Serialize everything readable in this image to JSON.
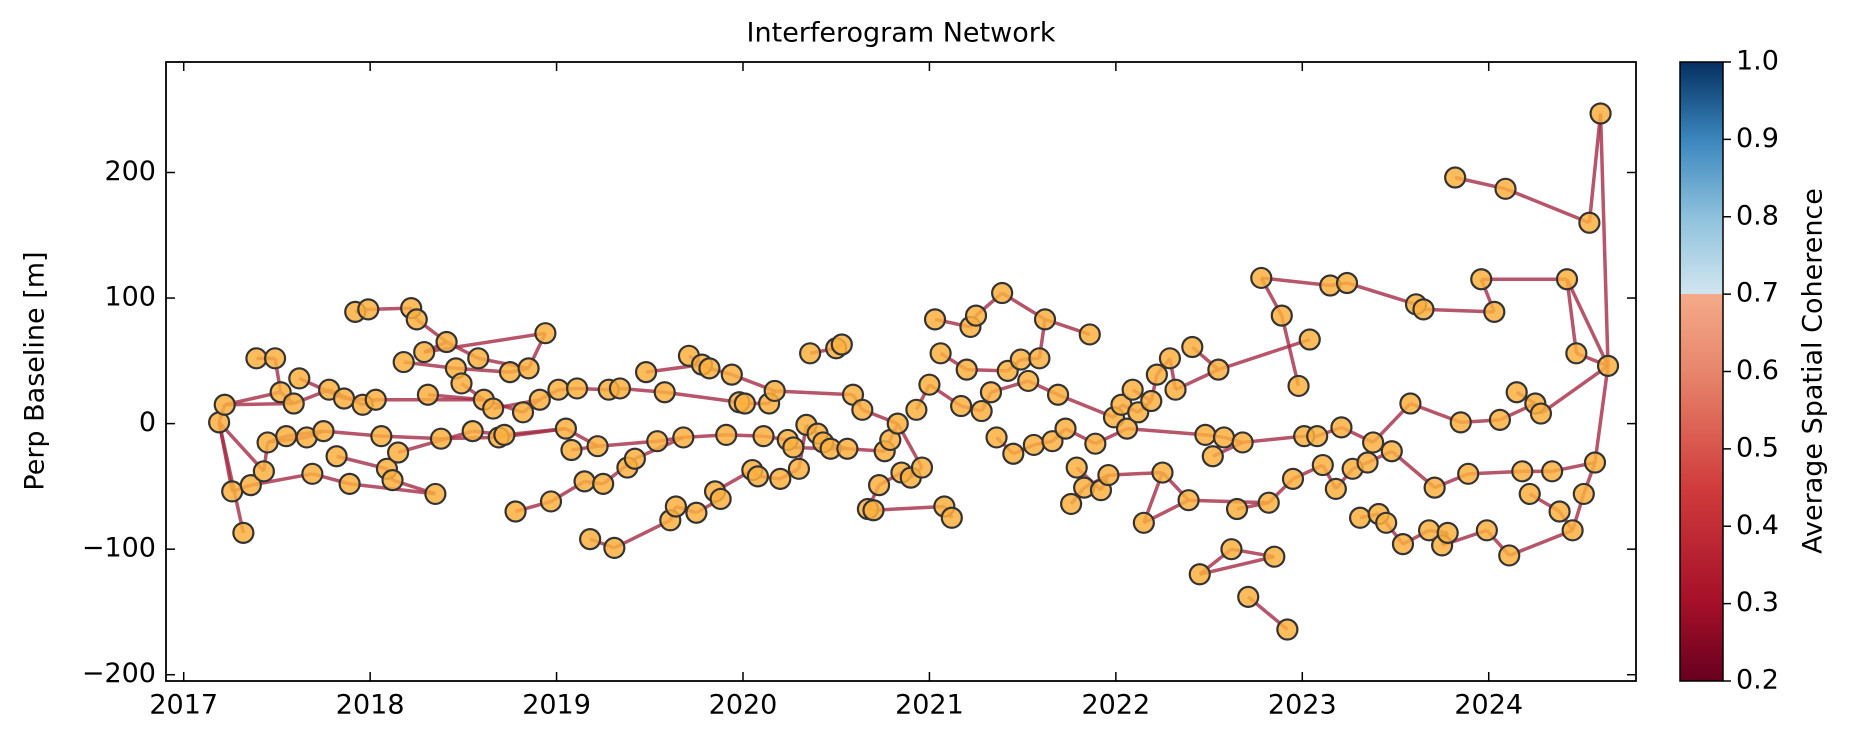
{
  "chart_data": {
    "type": "network",
    "title": "Interferogram Network",
    "ylabel": "Perp Baseline [m]",
    "xlim": [
      2016.905,
      2024.79
    ],
    "ylim": [
      -205,
      288
    ],
    "xticks": [
      2017,
      2018,
      2019,
      2020,
      2021,
      2022,
      2023,
      2024
    ],
    "yticks": [
      {
        "value": -200,
        "label": "−200"
      },
      {
        "value": -100,
        "label": "−100"
      },
      0,
      100,
      200
    ],
    "node_color": "#fbb040",
    "node_edge_color": "#333333",
    "edge_color": "#a52a45",
    "x": [
      2017.19,
      2017.22,
      2017.26,
      2017.32,
      2017.36,
      2017.39,
      2017.43,
      2017.45,
      2017.49,
      2017.52,
      2017.55,
      2017.59,
      2017.62,
      2017.66,
      2017.69,
      2017.75,
      2017.78,
      2017.82,
      2017.86,
      2017.89,
      2017.92,
      2017.96,
      2017.99,
      2018.03,
      2018.06,
      2018.09,
      2018.12,
      2018.15,
      2018.18,
      2018.22,
      2018.25,
      2018.29,
      2018.31,
      2018.35,
      2018.38,
      2018.41,
      2018.46,
      2018.49,
      2018.55,
      2018.58,
      2018.61,
      2018.66,
      2018.69,
      2018.72,
      2018.75,
      2018.78,
      2018.82,
      2018.85,
      2018.91,
      2018.94,
      2018.97,
      2019.01,
      2019.05,
      2019.08,
      2019.11,
      2019.15,
      2019.18,
      2019.22,
      2019.25,
      2019.28,
      2019.31,
      2019.34,
      2019.38,
      2019.42,
      2019.48,
      2019.54,
      2019.58,
      2019.61,
      2019.64,
      2019.68,
      2019.71,
      2019.75,
      2019.78,
      2019.82,
      2019.85,
      2019.88,
      2019.91,
      2019.94,
      2019.98,
      2020.01,
      2020.05,
      2020.08,
      2020.11,
      2020.14,
      2020.17,
      2020.2,
      2020.24,
      2020.27,
      2020.3,
      2020.34,
      2020.36,
      2020.4,
      2020.43,
      2020.47,
      2020.5,
      2020.53,
      2020.56,
      2020.59,
      2020.64,
      2020.67,
      2020.7,
      2020.73,
      2020.76,
      2020.79,
      2020.83,
      2020.85,
      2020.9,
      2020.93,
      2020.96,
      2021.0,
      2021.03,
      2021.06,
      2021.08,
      2021.12,
      2021.17,
      2021.2,
      2021.22,
      2021.25,
      2021.28,
      2021.33,
      2021.36,
      2021.39,
      2021.42,
      2021.45,
      2021.49,
      2021.53,
      2021.56,
      2021.59,
      2021.62,
      2021.66,
      2021.69,
      2021.73,
      2021.76,
      2021.79,
      2021.83,
      2021.86,
      2021.89,
      2021.92,
      2021.96,
      2021.99,
      2022.03,
      2022.06,
      2022.09,
      2022.12,
      2022.15,
      2022.19,
      2022.22,
      2022.25,
      2022.29,
      2022.32,
      2022.39,
      2022.41,
      2022.45,
      2022.48,
      2022.52,
      2022.55,
      2022.58,
      2022.62,
      2022.65,
      2022.68,
      2022.71,
      2022.78,
      2022.82,
      2022.85,
      2022.89,
      2022.92,
      2022.95,
      2022.98,
      2023.01,
      2023.04,
      2023.08,
      2023.11,
      2023.15,
      2023.18,
      2023.21,
      2023.24,
      2023.27,
      2023.31,
      2023.35,
      2023.38,
      2023.41,
      2023.45,
      2023.48,
      2023.54,
      2023.58,
      2023.61,
      2023.65,
      2023.68,
      2023.71,
      2023.75,
      2023.78,
      2023.82,
      2023.85,
      2023.89,
      2023.96,
      2023.99,
      2024.03,
      2024.06,
      2024.09,
      2024.11,
      2024.15,
      2024.18,
      2024.22,
      2024.25,
      2024.28,
      2024.34,
      2024.38,
      2024.42,
      2024.45,
      2024.47,
      2024.51,
      2024.54,
      2024.57,
      2024.6,
      2024.64
    ],
    "y": [
      1,
      15,
      -54,
      -87,
      -49,
      52,
      -38,
      -15,
      52,
      25,
      -10,
      16,
      36,
      -11,
      -40,
      -6,
      27,
      -26,
      20,
      -48,
      89,
      15,
      91,
      19,
      -10,
      -36,
      -45,
      -23,
      49,
      92,
      83,
      57,
      23,
      -56,
      -12,
      65,
      44,
      32,
      -6,
      52,
      19,
      12,
      -11,
      -9,
      41,
      -70,
      9,
      44,
      19,
      72,
      -62,
      27,
      -4,
      -21,
      28,
      -46,
      -92,
      -18,
      -48,
      27,
      -99,
      28,
      -35,
      -28,
      41,
      -14,
      25,
      -77,
      -66,
      -11,
      54,
      -71,
      47,
      44,
      -54,
      -60,
      -9,
      39,
      17,
      16,
      -37,
      -42,
      -10,
      16,
      26,
      -44,
      -13,
      -19,
      -36,
      -1,
      56,
      -8,
      -15,
      -20,
      60,
      63,
      -20,
      23,
      11,
      -68,
      -69,
      -49,
      -22,
      -13,
      0,
      -39,
      -43,
      11,
      -35,
      31,
      83,
      56,
      -66,
      -75,
      14,
      43,
      77,
      86,
      10,
      25,
      -11,
      104,
      42,
      -24,
      51,
      34,
      -17,
      52,
      83,
      -14,
      23,
      -4,
      -64,
      -35,
      -51,
      71,
      -16,
      -53,
      -41,
      5,
      15,
      -4,
      27,
      9,
      -79,
      18,
      39,
      -39,
      52,
      27,
      -61,
      61,
      -120,
      -9,
      -26,
      43,
      -11,
      -100,
      -68,
      -15,
      -138,
      116,
      -63,
      -106,
      86,
      -164,
      -44,
      30,
      -10,
      67,
      -10,
      -33,
      110,
      -52,
      -3,
      112,
      -36,
      -75,
      -31,
      -15,
      -72,
      -79,
      -22,
      -96,
      16,
      95,
      91,
      -85,
      -51,
      -97,
      -87,
      196,
      1,
      -40,
      115,
      -85,
      89,
      3,
      187,
      -105,
      25,
      -38,
      -56,
      16,
      8,
      -38,
      -70,
      115,
      -85,
      56,
      -56,
      160,
      -31,
      247,
      46
    ],
    "edges": [
      [
        0,
        1
      ],
      [
        0,
        2
      ],
      [
        0,
        3
      ],
      [
        0,
        6
      ],
      [
        1,
        11
      ],
      [
        1,
        9
      ],
      [
        2,
        4
      ],
      [
        4,
        14
      ],
      [
        5,
        8
      ],
      [
        6,
        7
      ],
      [
        7,
        10
      ],
      [
        7,
        13
      ],
      [
        8,
        9
      ],
      [
        9,
        11
      ],
      [
        10,
        15
      ],
      [
        11,
        16
      ],
      [
        12,
        18
      ],
      [
        13,
        15
      ],
      [
        14,
        19
      ],
      [
        15,
        24
      ],
      [
        16,
        21
      ],
      [
        17,
        25
      ],
      [
        18,
        23
      ],
      [
        19,
        33
      ],
      [
        20,
        22
      ],
      [
        21,
        23
      ],
      [
        22,
        29
      ],
      [
        23,
        40
      ],
      [
        24,
        34
      ],
      [
        25,
        26
      ],
      [
        26,
        33
      ],
      [
        27,
        38
      ],
      [
        28,
        36
      ],
      [
        29,
        30
      ],
      [
        30,
        35
      ],
      [
        31,
        35
      ],
      [
        31,
        49
      ],
      [
        32,
        40
      ],
      [
        34,
        42
      ],
      [
        35,
        39
      ],
      [
        36,
        44
      ],
      [
        37,
        40
      ],
      [
        38,
        43
      ],
      [
        39,
        47
      ],
      [
        40,
        46
      ],
      [
        41,
        48
      ],
      [
        42,
        52
      ],
      [
        43,
        52
      ],
      [
        44,
        47
      ],
      [
        45,
        50
      ],
      [
        46,
        48
      ],
      [
        47,
        49
      ],
      [
        48,
        51
      ],
      [
        50,
        55
      ],
      [
        51,
        54
      ],
      [
        52,
        57
      ],
      [
        53,
        57
      ],
      [
        54,
        59
      ],
      [
        55,
        58
      ],
      [
        56,
        60
      ],
      [
        57,
        65
      ],
      [
        58,
        63
      ],
      [
        59,
        61
      ],
      [
        60,
        67
      ],
      [
        61,
        66
      ],
      [
        62,
        63
      ],
      [
        63,
        69
      ],
      [
        64,
        72
      ],
      [
        65,
        69
      ],
      [
        66,
        78
      ],
      [
        67,
        68
      ],
      [
        68,
        71
      ],
      [
        69,
        76
      ],
      [
        70,
        73
      ],
      [
        71,
        75
      ],
      [
        72,
        73
      ],
      [
        73,
        77
      ],
      [
        74,
        75
      ],
      [
        74,
        80
      ],
      [
        76,
        82
      ],
      [
        77,
        84
      ],
      [
        78,
        79
      ],
      [
        79,
        83
      ],
      [
        80,
        81
      ],
      [
        81,
        85
      ],
      [
        82,
        86
      ],
      [
        83,
        84
      ],
      [
        84,
        97
      ],
      [
        85,
        88
      ],
      [
        86,
        87
      ],
      [
        87,
        93
      ],
      [
        88,
        89
      ],
      [
        89,
        91
      ],
      [
        90,
        94
      ],
      [
        91,
        92
      ],
      [
        92,
        96
      ],
      [
        93,
        96
      ],
      [
        94,
        95
      ],
      [
        96,
        102
      ],
      [
        97,
        98
      ],
      [
        98,
        104
      ],
      [
        99,
        100
      ],
      [
        100,
        112
      ],
      [
        99,
        101
      ],
      [
        101,
        105
      ],
      [
        102,
        103
      ],
      [
        103,
        104
      ],
      [
        105,
        106
      ],
      [
        106,
        108
      ],
      [
        107,
        109
      ],
      [
        104,
        108
      ],
      [
        109,
        114
      ],
      [
        110,
        116
      ],
      [
        111,
        115
      ],
      [
        112,
        113
      ],
      [
        114,
        118
      ],
      [
        115,
        122
      ],
      [
        116,
        117
      ],
      [
        117,
        121
      ],
      [
        118,
        119
      ],
      [
        119,
        125
      ],
      [
        120,
        123
      ],
      [
        121,
        128
      ],
      [
        122,
        124
      ],
      [
        123,
        126
      ],
      [
        124,
        127
      ],
      [
        125,
        130
      ],
      [
        126,
        129
      ],
      [
        127,
        128
      ],
      [
        128,
        135
      ],
      [
        129,
        131
      ],
      [
        130,
        139
      ],
      [
        131,
        136
      ],
      [
        132,
        134
      ],
      [
        133,
        137
      ],
      [
        134,
        138
      ],
      [
        136,
        141
      ],
      [
        137,
        138
      ],
      [
        138,
        147
      ],
      [
        139,
        140
      ],
      [
        140,
        143
      ],
      [
        141,
        153
      ],
      [
        142,
        145
      ],
      [
        143,
        145
      ],
      [
        144,
        150
      ],
      [
        144,
        147
      ],
      [
        145,
        146
      ],
      [
        146,
        148
      ],
      [
        147,
        150
      ],
      [
        148,
        149
      ],
      [
        149,
        155
      ],
      [
        150,
        162
      ],
      [
        151,
        155
      ],
      [
        152,
        157
      ],
      [
        153,
        156
      ],
      [
        154,
        159
      ],
      [
        156,
        159
      ],
      [
        157,
        163
      ],
      [
        158,
        162
      ],
      [
        159,
        168
      ],
      [
        160,
        165
      ],
      [
        161,
        172
      ],
      [
        162,
        166
      ],
      [
        163,
        152
      ],
      [
        164,
        167
      ],
      [
        166,
        171
      ],
      [
        168,
        170
      ],
      [
        170,
        174
      ],
      [
        171,
        173
      ],
      [
        172,
        175
      ],
      [
        173,
        176
      ],
      [
        174,
        179
      ],
      [
        175,
        185
      ],
      [
        176,
        178
      ],
      [
        177,
        180
      ],
      [
        178,
        182
      ],
      [
        179,
        184
      ],
      [
        180,
        181
      ],
      [
        181,
        183
      ],
      [
        182,
        188
      ],
      [
        183,
        187
      ],
      [
        184,
        192
      ],
      [
        185,
        186
      ],
      [
        186,
        196
      ],
      [
        187,
        190
      ],
      [
        188,
        193
      ],
      [
        189,
        195
      ],
      [
        190,
        189
      ],
      [
        191,
        198
      ],
      [
        192,
        197
      ],
      [
        193,
        201
      ],
      [
        194,
        196
      ],
      [
        194,
        207
      ],
      [
        195,
        199
      ],
      [
        197,
        203
      ],
      [
        198,
        211
      ],
      [
        199,
        208
      ],
      [
        200,
        203
      ],
      [
        201,
        205
      ],
      [
        202,
        206
      ],
      [
        203,
        204
      ],
      [
        204,
        214
      ],
      [
        205,
        212
      ],
      [
        206,
        208
      ],
      [
        207,
        209
      ],
      [
        207,
        214
      ],
      [
        208,
        210
      ],
      [
        209,
        214
      ],
      [
        210,
        212
      ],
      [
        211,
        213
      ],
      [
        212,
        214
      ],
      [
        213,
        214
      ],
      [
        155,
        169
      ],
      [
        164,
        161
      ]
    ],
    "colorbar": {
      "label": "Average Spatial Coherence",
      "clim": [
        0.2,
        1
      ],
      "ticks": [
        0.2,
        0.3,
        0.4,
        0.5,
        0.6,
        0.7,
        0.8,
        0.9,
        {
          "value": 1,
          "label": "1.0"
        }
      ],
      "stops": [
        {
          "value": 0.2,
          "color": "#67001f"
        },
        {
          "value": 0.3,
          "color": "#a50f28"
        },
        {
          "value": 0.45,
          "color": "#d03c3c"
        },
        {
          "value": 0.6,
          "color": "#e7866c"
        },
        {
          "value": 0.7,
          "color": "#f5aa8a"
        },
        {
          "value": 0.7,
          "color": "#d1e5f0"
        },
        {
          "value": 0.8,
          "color": "#8ec1dc"
        },
        {
          "value": 0.9,
          "color": "#3a86bd"
        },
        {
          "value": 1,
          "color": "#053061"
        }
      ]
    }
  }
}
